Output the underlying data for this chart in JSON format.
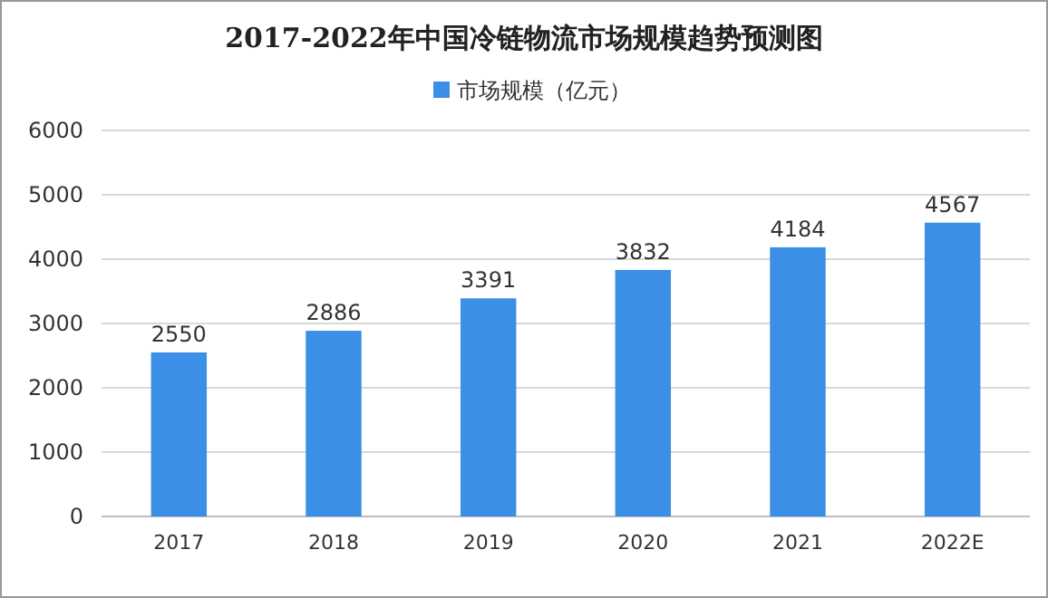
{
  "chart_data": {
    "type": "bar",
    "title": "2017-2022年中国冷链物流市场规模趋势预测图",
    "categories": [
      "2017",
      "2018",
      "2019",
      "2020",
      "2021",
      "2022E"
    ],
    "series": [
      {
        "name": "市场规模（亿元）",
        "color": "#3b8fe6",
        "values": [
          2550,
          2886,
          3391,
          3832,
          4184,
          4567
        ]
      }
    ],
    "ylim": [
      0,
      6000
    ],
    "yticks": [
      0,
      1000,
      2000,
      3000,
      4000,
      5000,
      6000
    ],
    "grid": "y",
    "legend": "top",
    "data_labels": true
  }
}
